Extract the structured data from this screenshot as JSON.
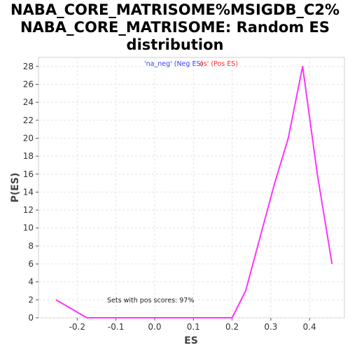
{
  "chart_data": {
    "type": "line",
    "title_lines": [
      "NABA_CORE_MATRISOME%MSIGDB_C2%",
      "NABA_CORE_MATRISOME: Random ES",
      "distribution"
    ],
    "xlabel": "ES",
    "ylabel": "P(ES)",
    "xlim": [
      -0.3,
      0.49
    ],
    "ylim": [
      0,
      29
    ],
    "x_ticks": [
      -0.2,
      -0.1,
      0.0,
      0.1,
      0.2,
      0.3,
      0.4
    ],
    "x_tick_labels": [
      "-0.2",
      "-0.1",
      "0.0",
      "0.1",
      "0.2",
      "0.3",
      "0.4"
    ],
    "y_ticks": [
      0,
      2,
      4,
      6,
      8,
      10,
      12,
      14,
      16,
      18,
      20,
      22,
      24,
      26,
      28
    ],
    "y_tick_labels": [
      "0",
      "2",
      "4",
      "6",
      "8",
      "10",
      "12",
      "14",
      "16",
      "18",
      "20",
      "22",
      "24",
      "26",
      "28"
    ],
    "grid": true,
    "legend": {
      "neg_label": "'na_neg' (Neg ES)",
      "pos_label": "os' (Pos ES)",
      "placement": "top-center"
    },
    "annotation": "Sets with pos scores: 97%",
    "series": [
      {
        "color": "#ff33ff",
        "x": [
          -0.255,
          -0.175,
          -0.1,
          0.0,
          0.1,
          0.2,
          0.235,
          0.31,
          0.345,
          0.382,
          0.42,
          0.458
        ],
        "y": [
          2,
          0,
          0,
          0,
          0,
          0,
          3,
          15,
          20,
          28,
          16,
          6
        ]
      }
    ]
  }
}
